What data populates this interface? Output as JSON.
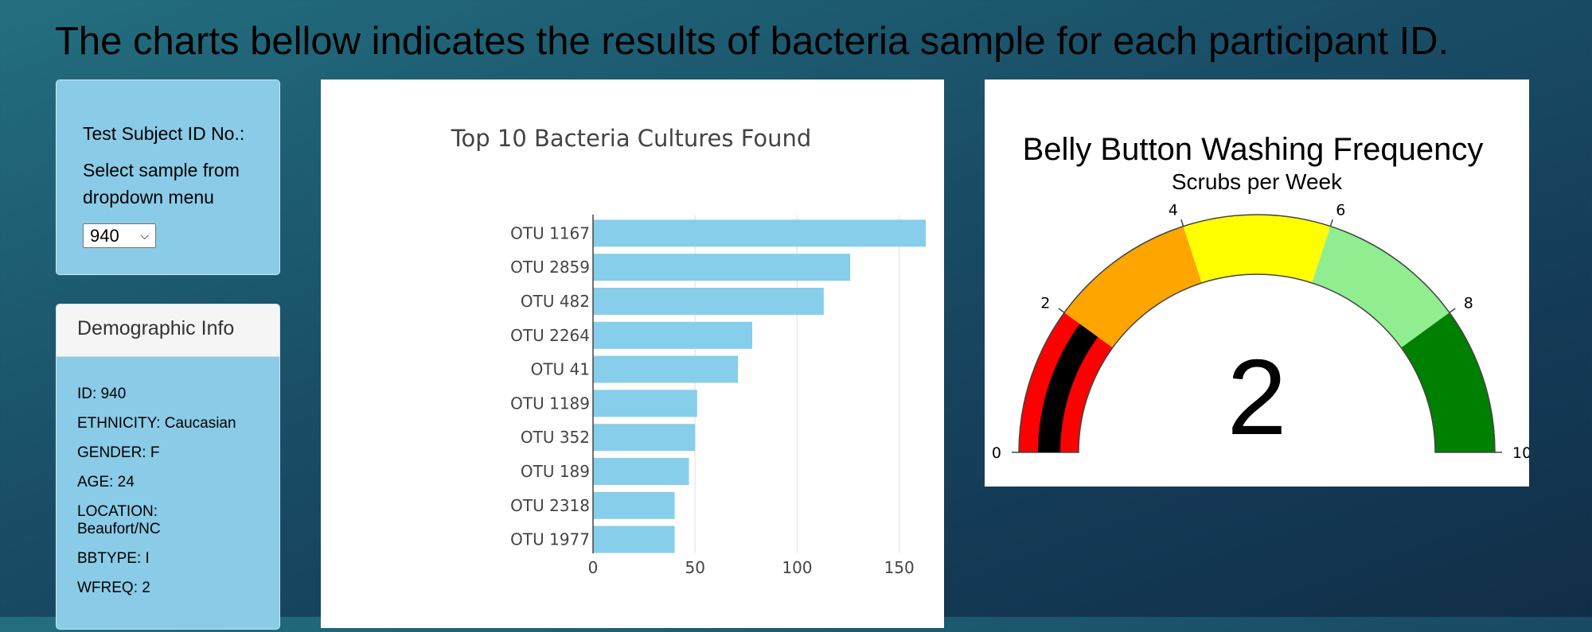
{
  "page": {
    "title": "The charts bellow indicates the results of bacteria sample for each participant ID."
  },
  "selector": {
    "label": "Test Subject ID No.:",
    "hint": "Select sample from dropdown menu",
    "selected": "940"
  },
  "demographics": {
    "heading": "Demographic Info",
    "rows": [
      "ID: 940",
      "ETHNICITY: Caucasian",
      "GENDER: F",
      "AGE: 24",
      "LOCATION: Beaufort/NC",
      "BBTYPE: I",
      "WFREQ: 2"
    ]
  },
  "bar_chart": {
    "title": "Top 10 Bacteria Cultures Found",
    "color": "#87ceeb"
  },
  "gauge": {
    "title": "Belly Button Washing Frequency",
    "subtitle": "Scrubs per Week",
    "value_display": "2"
  },
  "chart_data": [
    {
      "type": "bar",
      "orientation": "horizontal",
      "title": "Top 10 Bacteria Cultures Found",
      "categories": [
        "OTU 1167",
        "OTU 2859",
        "OTU 482",
        "OTU 2264",
        "OTU 41",
        "OTU 1189",
        "OTU 352",
        "OTU 189",
        "OTU 2318",
        "OTU 1977"
      ],
      "values": [
        163,
        126,
        113,
        78,
        71,
        51,
        50,
        47,
        40,
        40
      ],
      "xlim": [
        0,
        163
      ],
      "xticks": [
        0,
        50,
        100,
        150
      ],
      "grid": true,
      "color": "#87ceeb"
    },
    {
      "type": "gauge",
      "title": "Belly Button Washing Frequency",
      "subtitle": "Scrubs per Week",
      "value": 2,
      "range": [
        0,
        10
      ],
      "ticks": [
        0,
        2,
        4,
        6,
        8,
        10
      ],
      "steps": [
        {
          "range": [
            0,
            2
          ],
          "color": "#ff0000"
        },
        {
          "range": [
            2,
            4
          ],
          "color": "#ffa500"
        },
        {
          "range": [
            4,
            6
          ],
          "color": "#ffff00"
        },
        {
          "range": [
            6,
            8
          ],
          "color": "#90ee90"
        },
        {
          "range": [
            8,
            10
          ],
          "color": "#008000"
        }
      ],
      "bar_color": "#000000"
    }
  ]
}
